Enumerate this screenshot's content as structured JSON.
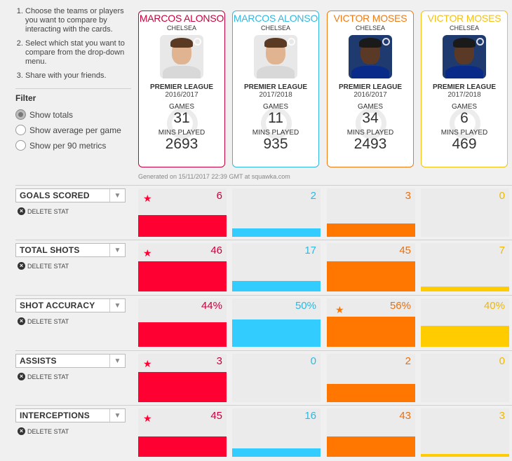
{
  "instructions": [
    "Choose the teams or players you want to compare by interacting with the cards.",
    "Select which stat you want to compare from the drop-down menu.",
    "Share with your friends."
  ],
  "filter": {
    "title": "Filter",
    "options": [
      "Show totals",
      "Show average per game",
      "Show per 90 metrics"
    ],
    "selected": "Show totals"
  },
  "players": [
    {
      "name": "MARCOS ALONSO",
      "club": "CHELSEA",
      "league": "PREMIER LEAGUE",
      "season": "2016/2017",
      "games_label": "GAMES",
      "games": "31",
      "mins_label": "MINS PLAYED",
      "mins": "2693",
      "color": "#c8003c"
    },
    {
      "name": "MARCOS ALONSO",
      "club": "CHELSEA",
      "league": "PREMIER LEAGUE",
      "season": "2017/2018",
      "games_label": "GAMES",
      "games": "11",
      "mins_label": "MINS PLAYED",
      "mins": "935",
      "color": "#2fb8e0"
    },
    {
      "name": "VICTOR MOSES",
      "club": "CHELSEA",
      "league": "PREMIER LEAGUE",
      "season": "2016/2017",
      "games_label": "GAMES",
      "games": "34",
      "mins_label": "MINS PLAYED",
      "mins": "2493",
      "color": "#f07a12"
    },
    {
      "name": "VICTOR MOSES",
      "club": "CHELSEA",
      "league": "PREMIER LEAGUE",
      "season": "2017/2018",
      "games_label": "GAMES",
      "games": "6",
      "mins_label": "MINS PLAYED",
      "mins": "469",
      "color": "#f3c112"
    }
  ],
  "generated": "Generated on 15/11/2017 22:39 GMT at squawka.com",
  "delete_label": "DELETE STAT",
  "bar_colors": [
    "#ff0033",
    "#33ccff",
    "#ff7700",
    "#ffcc00"
  ],
  "text_colors": [
    "#c8003c",
    "#2fb8e0",
    "#e8700f",
    "#efb800"
  ],
  "stats": [
    {
      "name": "GOALS SCORED",
      "values": [
        "6",
        "2",
        "3",
        "0"
      ],
      "fill": [
        0.45,
        0.18,
        0.28,
        0.0
      ],
      "leader": 0
    },
    {
      "name": "TOTAL SHOTS",
      "values": [
        "46",
        "17",
        "45",
        "7"
      ],
      "fill": [
        0.62,
        0.22,
        0.62,
        0.1
      ],
      "leader": 0
    },
    {
      "name": "SHOT ACCURACY",
      "values": [
        "44%",
        "50%",
        "56%",
        "40%"
      ],
      "fill": [
        0.5,
        0.56,
        0.63,
        0.44
      ],
      "leader": 2
    },
    {
      "name": "ASSISTS",
      "values": [
        "3",
        "0",
        "2",
        "0"
      ],
      "fill": [
        0.62,
        0.0,
        0.38,
        0.0
      ],
      "leader": 0
    },
    {
      "name": "INTERCEPTIONS",
      "values": [
        "45",
        "16",
        "43",
        "3"
      ],
      "fill": [
        0.42,
        0.18,
        0.42,
        0.06
      ],
      "leader": 0
    }
  ]
}
